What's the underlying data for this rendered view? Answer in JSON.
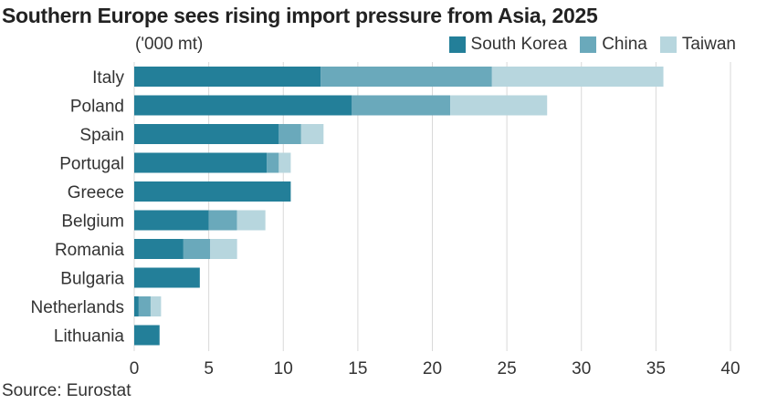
{
  "chart_data": {
    "type": "bar",
    "orientation": "horizontal",
    "stacked": true,
    "title": "Southern Europe sees rising import pressure from Asia, 2025",
    "unit_label": "('000 mt)",
    "source": "Source: Eurostat",
    "categories": [
      "Italy",
      "Poland",
      "Spain",
      "Portugal",
      "Greece",
      "Belgium",
      "Romania",
      "Bulgaria",
      "Netherlands",
      "Lithuania"
    ],
    "series": [
      {
        "name": "South Korea",
        "color": "#237f99",
        "values": [
          12.5,
          14.6,
          9.7,
          8.9,
          10.5,
          5.0,
          3.3,
          4.4,
          0.3,
          1.7
        ]
      },
      {
        "name": "China",
        "color": "#6aa9bb",
        "values": [
          11.5,
          6.6,
          1.5,
          0.8,
          0,
          1.9,
          1.8,
          0,
          0.8,
          0
        ]
      },
      {
        "name": "Taiwan",
        "color": "#b7d6de",
        "values": [
          11.5,
          6.5,
          1.5,
          0.8,
          0,
          1.9,
          1.8,
          0,
          0.7,
          0
        ]
      }
    ],
    "xlim": [
      0,
      40
    ],
    "xticks": [
      0,
      5,
      10,
      15,
      20,
      25,
      30,
      35,
      40
    ],
    "grid": true,
    "legend_position": "top-right"
  }
}
